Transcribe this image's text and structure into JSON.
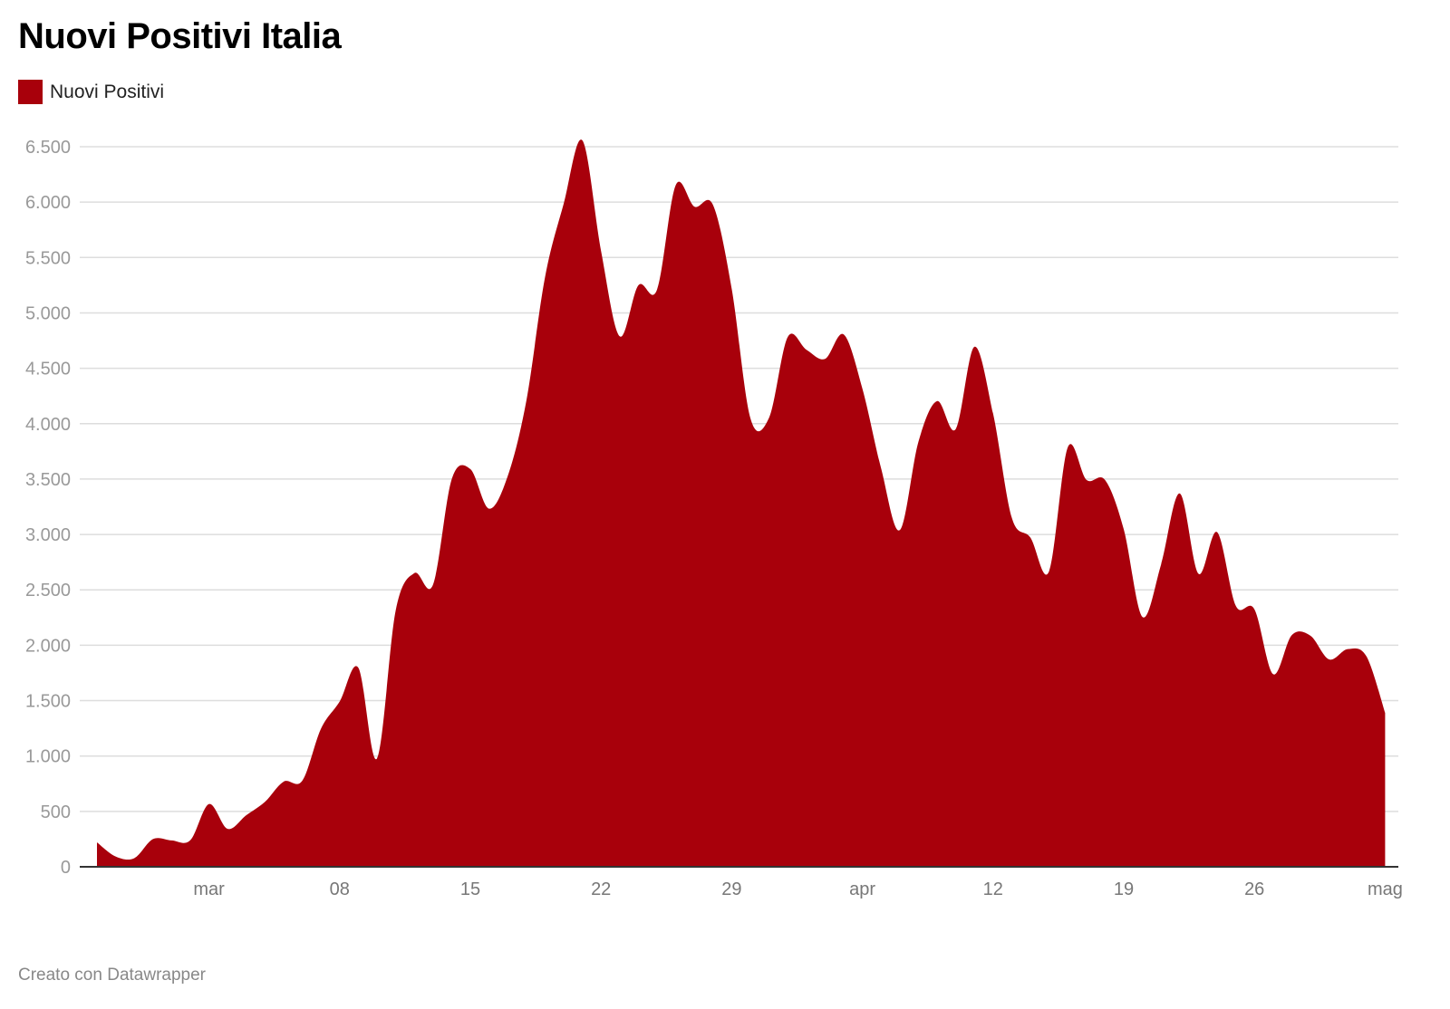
{
  "title": "Nuovi Positivi Italia",
  "legend": [
    {
      "label": "Nuovi Positivi",
      "color": "#a8000b"
    }
  ],
  "footer": "Creato con Datawrapper",
  "colors": {
    "series": "#a8000b",
    "grid": "#dddddd",
    "axis": "#333333"
  },
  "chart_data": {
    "type": "area",
    "title": "Nuovi Positivi Italia",
    "xlabel": "",
    "ylabel": "",
    "ylim": [
      0,
      6500
    ],
    "grid": true,
    "legend_position": "top-left",
    "x_ticks": [
      {
        "date": "2020-03-01",
        "label": "mar"
      },
      {
        "date": "2020-03-08",
        "label": "08"
      },
      {
        "date": "2020-03-15",
        "label": "15"
      },
      {
        "date": "2020-03-22",
        "label": "22"
      },
      {
        "date": "2020-03-29",
        "label": "29"
      },
      {
        "date": "2020-04-05",
        "label": "apr"
      },
      {
        "date": "2020-04-12",
        "label": "12"
      },
      {
        "date": "2020-04-19",
        "label": "19"
      },
      {
        "date": "2020-04-26",
        "label": "26"
      },
      {
        "date": "2020-05-03",
        "label": "mag"
      }
    ],
    "y_ticks": [
      {
        "value": 0,
        "label": "0"
      },
      {
        "value": 500,
        "label": "500"
      },
      {
        "value": 1000,
        "label": "1.000"
      },
      {
        "value": 1500,
        "label": "1.500"
      },
      {
        "value": 2000,
        "label": "2.000"
      },
      {
        "value": 2500,
        "label": "2.500"
      },
      {
        "value": 3000,
        "label": "3.000"
      },
      {
        "value": 3500,
        "label": "3.500"
      },
      {
        "value": 4000,
        "label": "4.000"
      },
      {
        "value": 4500,
        "label": "4.500"
      },
      {
        "value": 5000,
        "label": "5.000"
      },
      {
        "value": 5500,
        "label": "5.500"
      },
      {
        "value": 6000,
        "label": "6.000"
      },
      {
        "value": 6500,
        "label": "6.500"
      }
    ],
    "series": [
      {
        "name": "Nuovi Positivi",
        "x": [
          "2020-02-24",
          "2020-02-25",
          "2020-02-26",
          "2020-02-27",
          "2020-02-28",
          "2020-02-29",
          "2020-03-01",
          "2020-03-02",
          "2020-03-03",
          "2020-03-04",
          "2020-03-05",
          "2020-03-06",
          "2020-03-07",
          "2020-03-08",
          "2020-03-09",
          "2020-03-10",
          "2020-03-11",
          "2020-03-12",
          "2020-03-13",
          "2020-03-14",
          "2020-03-15",
          "2020-03-16",
          "2020-03-17",
          "2020-03-18",
          "2020-03-19",
          "2020-03-20",
          "2020-03-21",
          "2020-03-22",
          "2020-03-23",
          "2020-03-24",
          "2020-03-25",
          "2020-03-26",
          "2020-03-27",
          "2020-03-28",
          "2020-03-29",
          "2020-03-30",
          "2020-03-31",
          "2020-04-01",
          "2020-04-02",
          "2020-04-03",
          "2020-04-04",
          "2020-04-05",
          "2020-04-06",
          "2020-04-07",
          "2020-04-08",
          "2020-04-09",
          "2020-04-10",
          "2020-04-11",
          "2020-04-12",
          "2020-04-13",
          "2020-04-14",
          "2020-04-15",
          "2020-04-16",
          "2020-04-17",
          "2020-04-18",
          "2020-04-19",
          "2020-04-20",
          "2020-04-21",
          "2020-04-22",
          "2020-04-23",
          "2020-04-24",
          "2020-04-25",
          "2020-04-26",
          "2020-04-27",
          "2020-04-28",
          "2020-04-29",
          "2020-04-30",
          "2020-05-01",
          "2020-05-02",
          "2020-05-03"
        ],
        "values": [
          221,
          93,
          78,
          250,
          238,
          240,
          566,
          342,
          466,
          587,
          769,
          778,
          1247,
          1492,
          1797,
          977,
          2313,
          2651,
          2547,
          3497,
          3590,
          3233,
          3526,
          4207,
          5322,
          5986,
          6557,
          5560,
          4789,
          5249,
          5210,
          6153,
          5959,
          5974,
          5217,
          4050,
          4053,
          4782,
          4668,
          4585,
          4805,
          4316,
          3599,
          3039,
          3836,
          4204,
          3951,
          4694,
          4092,
          3153,
          2972,
          2667,
          3786,
          3493,
          3491,
          3047,
          2256,
          2729,
          3370,
          2646,
          3021,
          2357,
          2324,
          1739,
          2091,
          2086,
          1872,
          1965,
          1900,
          1389
        ]
      }
    ]
  }
}
